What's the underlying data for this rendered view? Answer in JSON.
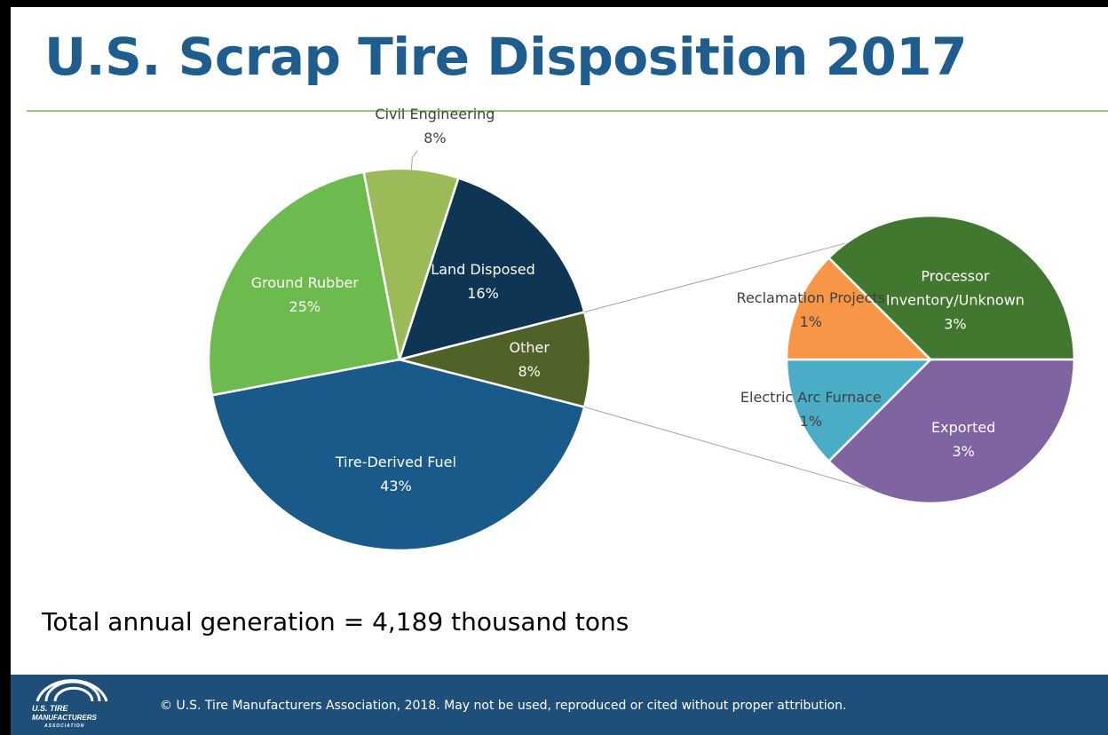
{
  "chart_data": [
    {
      "type": "pie",
      "title": "U.S. Scrap Tire Disposition 2017",
      "categories": [
        "Tire-Derived Fuel",
        "Ground Rubber",
        "Civil Engineering",
        "Land Disposed",
        "Other"
      ],
      "values": [
        43,
        25,
        8,
        16,
        8
      ],
      "value_labels": [
        "43%",
        "25%",
        "8%",
        "16%",
        "8%"
      ],
      "colors": [
        "#1a5a8a",
        "#6dbb4f",
        "#9bbb59",
        "#0e3553",
        "#4f6228"
      ]
    },
    {
      "type": "pie",
      "categories": [
        "Processor Inventory/Unknown",
        "Exported",
        "Electric Arc Furnace",
        "Reclamation Projects"
      ],
      "values": [
        3,
        3,
        1,
        1
      ],
      "value_labels": [
        "3%",
        "3%",
        "1%",
        "1%"
      ],
      "colors": [
        "#41772e",
        "#8064a2",
        "#4bacc6",
        "#f79646"
      ]
    }
  ],
  "note": "Total annual generation = 4,189 thousand tons",
  "footer": {
    "logo": [
      "U.S. TIRE",
      "MANUFACTURERS",
      "ASSOCIATION"
    ],
    "text": "© U.S. Tire Manufacturers Association, 2018. May not be used, reproduced or cited without proper attribution."
  }
}
